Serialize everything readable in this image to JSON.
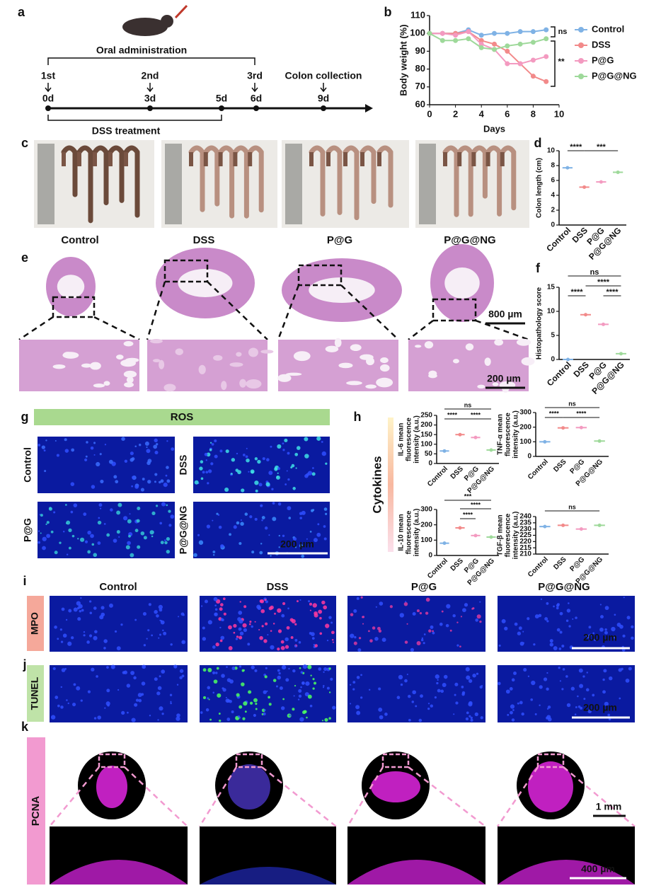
{
  "letters": [
    "a",
    "b",
    "c",
    "d",
    "e",
    "f",
    "g",
    "h",
    "i",
    "j",
    "k"
  ],
  "timeline": {
    "administration": "Oral administration",
    "doses": [
      "1st",
      "2nd",
      "3rd"
    ],
    "collection": "Colon collection",
    "days": [
      "0d",
      "3d",
      "5d",
      "6d",
      "9d"
    ],
    "treatment": "DSS treatment"
  },
  "groups": [
    "Control",
    "DSS",
    "P@G",
    "P@G@NG"
  ],
  "scale_bars": {
    "e_top": "800 µm",
    "e_zoom": "200 µm",
    "g": "200 µm",
    "i": "200 µm",
    "j": "200 µm",
    "k_top": "1 mm",
    "k_zoom": "400 µm"
  },
  "stains": {
    "ros": "ROS",
    "mpo": "MPO",
    "tunel": "TUNEL",
    "pcna": "PCNA"
  },
  "cytokines": "Cytokines",
  "chart_data": [
    {
      "type": "line",
      "xlabel": "Days",
      "ylabel": "Body weight (%)",
      "x": [
        0,
        1,
        2,
        3,
        4,
        5,
        6,
        7,
        8,
        9
      ],
      "xlim": [
        0,
        10
      ],
      "xticks": [
        0,
        2,
        4,
        6,
        8,
        10
      ],
      "ylim": [
        60,
        110
      ],
      "yticks": [
        60,
        70,
        80,
        90,
        100,
        110
      ],
      "legend": "right",
      "series": [
        {
          "name": "Control",
          "color": "#7fb2e5",
          "values": [
            100,
            100,
            100,
            102,
            99,
            100,
            100,
            101,
            101,
            102
          ]
        },
        {
          "name": "DSS",
          "color": "#f28a8a",
          "values": [
            100,
            100,
            100,
            101,
            96,
            94,
            90,
            83,
            76,
            73
          ]
        },
        {
          "name": "P@G",
          "color": "#f39ac0",
          "values": [
            100,
            100,
            99,
            101,
            94,
            91,
            83,
            83,
            85,
            87
          ]
        },
        {
          "name": "P@G@NG",
          "color": "#9ed99a",
          "values": [
            100,
            96,
            96,
            97,
            92,
            91,
            93,
            94,
            95,
            97
          ]
        }
      ],
      "annotations": [
        "ns",
        "**"
      ]
    },
    {
      "type": "dot",
      "ylabel": "Colon length (cm)",
      "categories": [
        "Control",
        "DSS",
        "P@G",
        "P@G@NG"
      ],
      "values": [
        7.7,
        5.1,
        5.8,
        7.1
      ],
      "colors": [
        "#7fb2e5",
        "#f28a8a",
        "#f39ac0",
        "#9ed99a"
      ],
      "ylim": [
        0,
        10
      ],
      "yticks": [
        0,
        2,
        4,
        6,
        8,
        10
      ],
      "annotations": [
        "****",
        "***"
      ]
    },
    {
      "type": "dot",
      "ylabel": "Histopathology score",
      "categories": [
        "Control",
        "DSS",
        "P@G",
        "P@G@NG"
      ],
      "values": [
        0,
        9.3,
        7.3,
        1.2
      ],
      "colors": [
        "#7fb2e5",
        "#f28a8a",
        "#f39ac0",
        "#9ed99a"
      ],
      "ylim": [
        0,
        15
      ],
      "yticks": [
        0,
        5,
        10,
        15
      ],
      "annotations": [
        "ns",
        "****",
        "****",
        "****"
      ]
    },
    {
      "type": "dot",
      "ylabel": [
        "IL-6 mean",
        "fluorescence",
        "intensity (a.u.)"
      ],
      "categories": [
        "Control",
        "DSS",
        "P@G",
        "P@G@NG"
      ],
      "values": [
        65,
        150,
        135,
        70
      ],
      "colors": [
        "#7fb2e5",
        "#f28a8a",
        "#f39ac0",
        "#9ed99a"
      ],
      "ylim": [
        0,
        250
      ],
      "yticks": [
        0,
        50,
        100,
        150,
        200,
        250
      ],
      "annotations": [
        "ns",
        "****",
        "****"
      ]
    },
    {
      "type": "dot",
      "ylabel": [
        "TNF-α mean",
        "fluorescence",
        "intensity (a.u.)"
      ],
      "categories": [
        "Control",
        "DSS",
        "P@G",
        "P@G@NG"
      ],
      "values": [
        100,
        195,
        197,
        105
      ],
      "colors": [
        "#7fb2e5",
        "#f28a8a",
        "#f39ac0",
        "#9ed99a"
      ],
      "ylim": [
        0,
        300
      ],
      "yticks": [
        0,
        100,
        200,
        300
      ],
      "annotations": [
        "ns",
        "****",
        "****"
      ]
    },
    {
      "type": "dot",
      "ylabel": [
        "IL-10 mean",
        "fluorescence",
        "intensity (a.u.)"
      ],
      "categories": [
        "Control",
        "DSS",
        "P@G",
        "P@G@NG"
      ],
      "values": [
        80,
        180,
        130,
        120
      ],
      "colors": [
        "#7fb2e5",
        "#f28a8a",
        "#f39ac0",
        "#9ed99a"
      ],
      "ylim": [
        0,
        300
      ],
      "yticks": [
        0,
        100,
        200,
        300
      ],
      "annotations": [
        "***",
        "****",
        "****"
      ]
    },
    {
      "type": "dot",
      "ylabel": [
        "TGF-β mean",
        "fluorescence",
        "intensity (a.u.)"
      ],
      "categories": [
        "Control",
        "DSS",
        "P@G",
        "P@G@NG"
      ],
      "values": [
        232,
        233,
        230,
        233
      ],
      "colors": [
        "#7fb2e5",
        "#f28a8a",
        "#f39ac0",
        "#9ed99a"
      ],
      "ylim": [
        210,
        240
      ],
      "yticks": [
        210,
        215,
        220,
        225,
        230,
        235,
        240
      ],
      "annotations": [
        "ns"
      ]
    }
  ]
}
